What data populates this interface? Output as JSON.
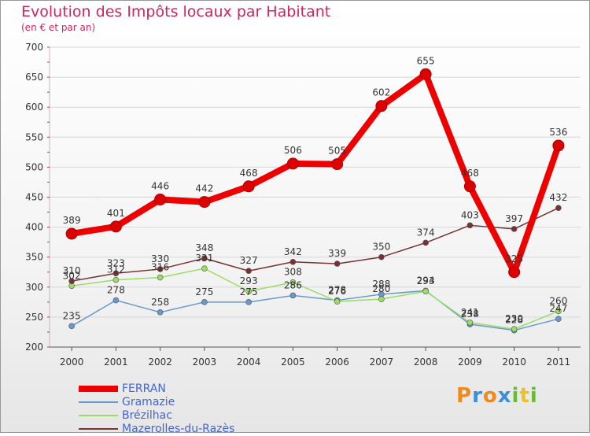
{
  "title": "Evolution des Impôts locaux par Habitant",
  "subtitle": "(en € et par an)",
  "logo_text": "Proxiti",
  "chart_data": {
    "type": "line",
    "title": "Evolution des Impôts locaux par Habitant",
    "subtitle": "(en € et par an)",
    "xlabel": "",
    "ylabel": "",
    "ylim": [
      200,
      700
    ],
    "yticks": [
      200,
      250,
      300,
      350,
      400,
      450,
      500,
      550,
      600,
      650,
      700
    ],
    "x": [
      "2000",
      "2001",
      "2002",
      "2003",
      "2004",
      "2005",
      "2006",
      "2007",
      "2008",
      "2009",
      "2010",
      "2011"
    ],
    "grid": "horizontal",
    "legend_position": "bottom-left",
    "series": [
      {
        "name": "FERRAN",
        "color": "#ee0000",
        "values": [
          389,
          401,
          446,
          442,
          468,
          506,
          505,
          602,
          655,
          468,
          325,
          536
        ]
      },
      {
        "name": "Gramazie",
        "color": "#6699cc",
        "values": [
          235,
          278,
          258,
          275,
          275,
          286,
          278,
          288,
          294,
          238,
          228,
          247
        ]
      },
      {
        "name": "Brézilhac",
        "color": "#99dd66",
        "values": [
          302,
          312,
          316,
          331,
          293,
          308,
          276,
          280,
          293,
          241,
          230,
          260
        ]
      },
      {
        "name": "Mazerolles-du-Razès",
        "color": "#773333",
        "values": [
          310,
          323,
          330,
          348,
          327,
          342,
          339,
          350,
          374,
          403,
          397,
          432
        ]
      }
    ]
  }
}
